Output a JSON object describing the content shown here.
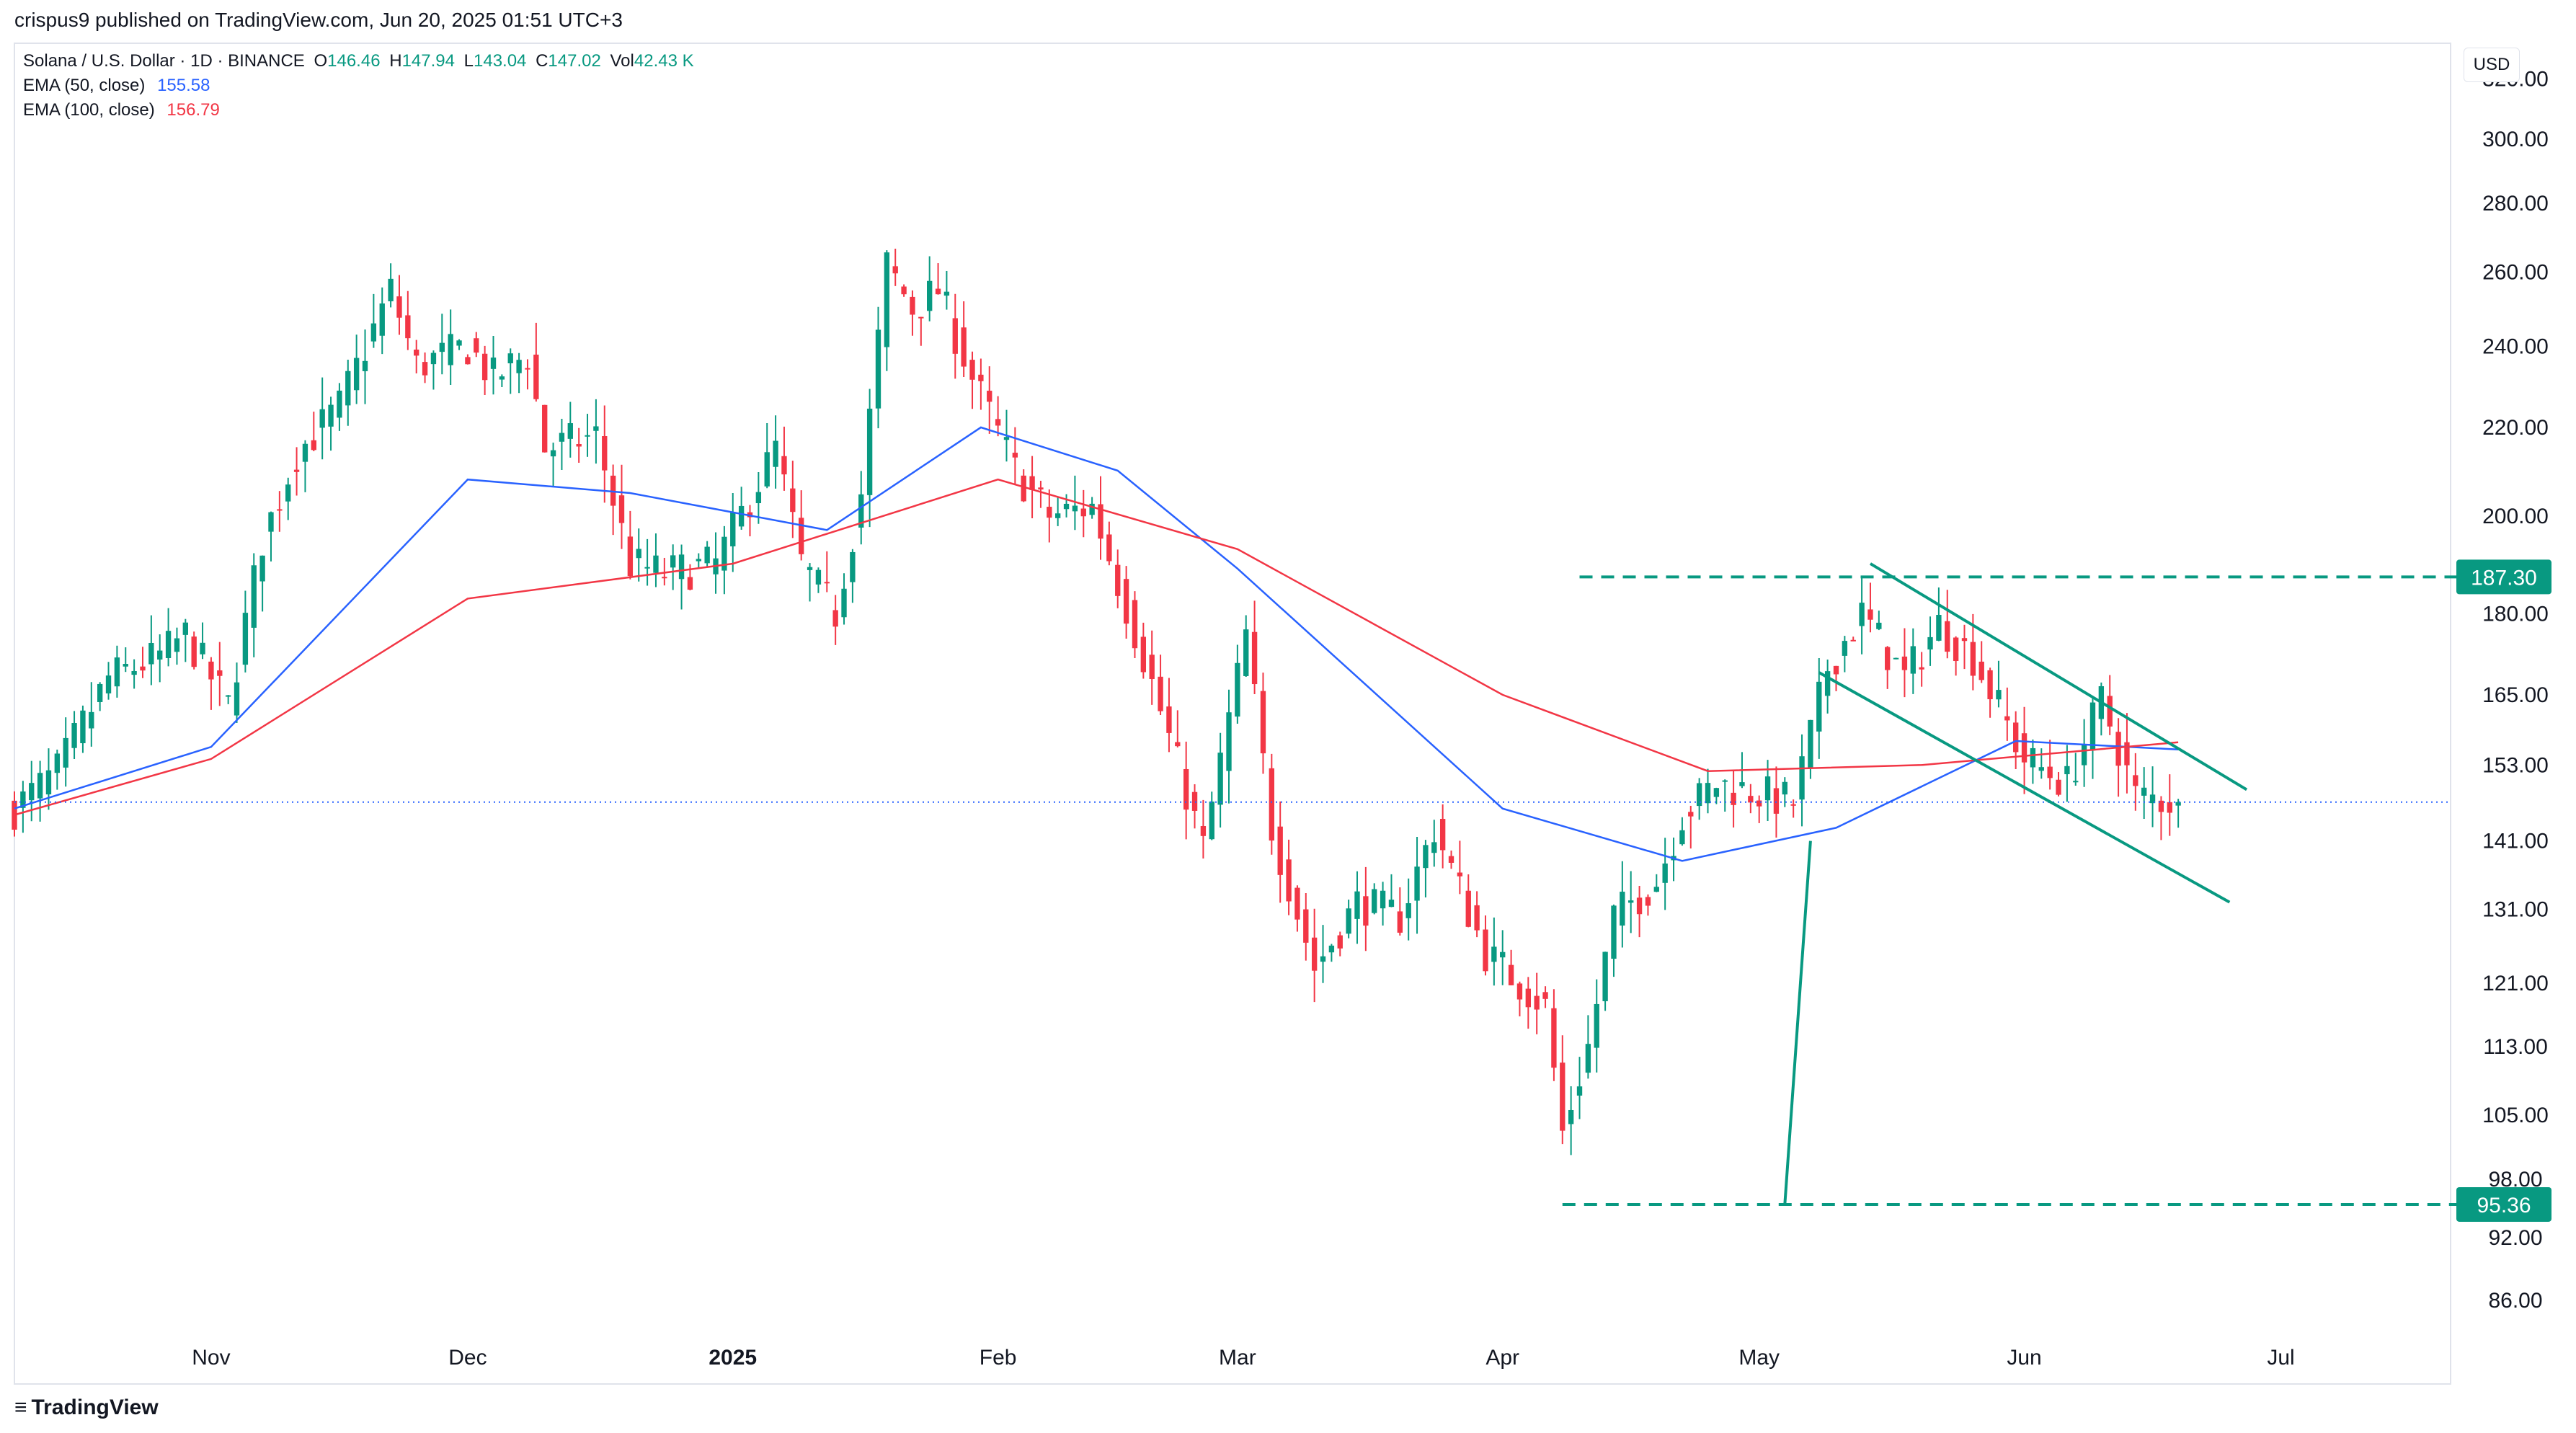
{
  "header": {
    "published": "crispus9 published on TradingView.com, Jun 20, 2025 01:51 UTC+3"
  },
  "legend": {
    "symbol": "Solana / U.S. Dollar · 1D · BINANCE",
    "o_label": "O",
    "o_value": "146.46",
    "h_label": "H",
    "h_value": "147.94",
    "l_label": "L",
    "l_value": "143.04",
    "c_label": "C",
    "c_value": "147.02",
    "vol_label": "Vol",
    "vol_value": "42.43 K",
    "ema50_label": "EMA (50, close)",
    "ema50_value": "155.58",
    "ema100_label": "EMA (100, close)",
    "ema100_value": "156.79"
  },
  "currency": "USD",
  "footer": {
    "brand": "TradingView"
  },
  "colors": {
    "up": "#089981",
    "down": "#f23645",
    "ema50": "#2962ff",
    "ema100": "#f23645",
    "drawing": "#089981",
    "last_price_line": "#2962ff",
    "axis_text": "#131722"
  },
  "chart_data": {
    "type": "candlestick",
    "title": "",
    "y_scale": "log",
    "ylim": [
      83,
      330
    ],
    "xlim": [
      "2024-10-09",
      "2025-07-20"
    ],
    "y_ticks": [
      "320.00",
      "300.00",
      "280.00",
      "260.00",
      "240.00",
      "220.00",
      "200.00",
      "180.00",
      "165.00",
      "153.00",
      "141.00",
      "131.00",
      "121.00",
      "113.00",
      "105.00",
      "98.00",
      "92.00",
      "86.00"
    ],
    "x_ticks": [
      {
        "date": "2024-11-01",
        "label": "Nov",
        "bold": false
      },
      {
        "date": "2024-12-01",
        "label": "Dec",
        "bold": false
      },
      {
        "date": "2025-01-01",
        "label": "2025",
        "bold": true
      },
      {
        "date": "2025-02-01",
        "label": "Feb",
        "bold": false
      },
      {
        "date": "2025-03-01",
        "label": "Mar",
        "bold": false
      },
      {
        "date": "2025-04-01",
        "label": "Apr",
        "bold": false
      },
      {
        "date": "2025-05-01",
        "label": "May",
        "bold": false
      },
      {
        "date": "2025-06-01",
        "label": "Jun",
        "bold": false
      },
      {
        "date": "2025-07-01",
        "label": "Jul",
        "bold": false
      }
    ],
    "price_labels": [
      {
        "value": 187.3,
        "label": "187.30"
      },
      {
        "value": 95.36,
        "label": "95.36"
      }
    ],
    "last_price": 147.02,
    "anchors": [
      {
        "date": "2024-10-09",
        "close": 146
      },
      {
        "date": "2024-10-14",
        "close": 152
      },
      {
        "date": "2024-10-20",
        "close": 168
      },
      {
        "date": "2024-10-26",
        "close": 172
      },
      {
        "date": "2024-10-29",
        "close": 176
      },
      {
        "date": "2024-11-03",
        "close": 163
      },
      {
        "date": "2024-11-07",
        "close": 195
      },
      {
        "date": "2024-11-11",
        "close": 214
      },
      {
        "date": "2024-11-16",
        "close": 225
      },
      {
        "date": "2024-11-22",
        "close": 255
      },
      {
        "date": "2024-11-25",
        "close": 235
      },
      {
        "date": "2024-12-01",
        "close": 240
      },
      {
        "date": "2024-12-04",
        "close": 232
      },
      {
        "date": "2024-12-08",
        "close": 238
      },
      {
        "date": "2024-12-10",
        "close": 215
      },
      {
        "date": "2024-12-16",
        "close": 218
      },
      {
        "date": "2024-12-20",
        "close": 190
      },
      {
        "date": "2024-12-24",
        "close": 188
      },
      {
        "date": "2024-12-30",
        "close": 190
      },
      {
        "date": "2025-01-06",
        "close": 215
      },
      {
        "date": "2025-01-09",
        "close": 190
      },
      {
        "date": "2025-01-13",
        "close": 180
      },
      {
        "date": "2025-01-16",
        "close": 205
      },
      {
        "date": "2025-01-19",
        "close": 262
      },
      {
        "date": "2025-01-22",
        "close": 250
      },
      {
        "date": "2025-01-25",
        "close": 255
      },
      {
        "date": "2025-01-29",
        "close": 232
      },
      {
        "date": "2025-02-03",
        "close": 210
      },
      {
        "date": "2025-02-07",
        "close": 200
      },
      {
        "date": "2025-02-12",
        "close": 202
      },
      {
        "date": "2025-02-18",
        "close": 172
      },
      {
        "date": "2025-02-25",
        "close": 140
      },
      {
        "date": "2025-03-02",
        "close": 176
      },
      {
        "date": "2025-03-05",
        "close": 143
      },
      {
        "date": "2025-03-10",
        "close": 123
      },
      {
        "date": "2025-03-15",
        "close": 132
      },
      {
        "date": "2025-03-20",
        "close": 130
      },
      {
        "date": "2025-03-24",
        "close": 143
      },
      {
        "date": "2025-03-30",
        "close": 125
      },
      {
        "date": "2025-04-06",
        "close": 118
      },
      {
        "date": "2025-04-08",
        "close": 103
      },
      {
        "date": "2025-04-11",
        "close": 113
      },
      {
        "date": "2025-04-14",
        "close": 130
      },
      {
        "date": "2025-04-19",
        "close": 135
      },
      {
        "date": "2025-04-22",
        "close": 145
      },
      {
        "date": "2025-04-26",
        "close": 150
      },
      {
        "date": "2025-05-05",
        "close": 147
      },
      {
        "date": "2025-05-09",
        "close": 170
      },
      {
        "date": "2025-05-13",
        "close": 180
      },
      {
        "date": "2025-05-18",
        "close": 168
      },
      {
        "date": "2025-05-22",
        "close": 178
      },
      {
        "date": "2025-05-26",
        "close": 172
      },
      {
        "date": "2025-06-01",
        "close": 154
      },
      {
        "date": "2025-06-06",
        "close": 150
      },
      {
        "date": "2025-06-10",
        "close": 164
      },
      {
        "date": "2025-06-14",
        "close": 148
      },
      {
        "date": "2025-06-19",
        "close": 147.02
      }
    ],
    "series": [
      {
        "name": "EMA (50, close)",
        "color": "#2962ff",
        "points": [
          {
            "date": "2024-10-09",
            "value": 146
          },
          {
            "date": "2024-11-01",
            "value": 156
          },
          {
            "date": "2024-12-01",
            "value": 208
          },
          {
            "date": "2024-12-20",
            "value": 205
          },
          {
            "date": "2025-01-12",
            "value": 197
          },
          {
            "date": "2025-01-30",
            "value": 220
          },
          {
            "date": "2025-02-15",
            "value": 210
          },
          {
            "date": "2025-03-01",
            "value": 189
          },
          {
            "date": "2025-04-01",
            "value": 146
          },
          {
            "date": "2025-04-22",
            "value": 138
          },
          {
            "date": "2025-05-10",
            "value": 143
          },
          {
            "date": "2025-05-31",
            "value": 157
          },
          {
            "date": "2025-06-19",
            "value": 155.58
          }
        ]
      },
      {
        "name": "EMA (100, close)",
        "color": "#f23645",
        "points": [
          {
            "date": "2024-10-09",
            "value": 145
          },
          {
            "date": "2024-11-01",
            "value": 154
          },
          {
            "date": "2024-12-01",
            "value": 183
          },
          {
            "date": "2025-01-01",
            "value": 190
          },
          {
            "date": "2025-02-01",
            "value": 208
          },
          {
            "date": "2025-03-01",
            "value": 193
          },
          {
            "date": "2025-04-01",
            "value": 165
          },
          {
            "date": "2025-04-25",
            "value": 152
          },
          {
            "date": "2025-05-20",
            "value": 153
          },
          {
            "date": "2025-06-19",
            "value": 156.79
          }
        ]
      }
    ],
    "annotations": [
      {
        "type": "hline-dashed",
        "value": 187.3,
        "from": "2025-04-10",
        "to": "2025-07-24"
      },
      {
        "type": "hline-dashed",
        "value": 95.36,
        "from": "2025-04-08",
        "to": "2025-07-24"
      },
      {
        "type": "trendline",
        "from": {
          "date": "2025-05-04",
          "value": 95.36
        },
        "to": {
          "date": "2025-05-07",
          "value": 141
        }
      },
      {
        "type": "trendline",
        "from": {
          "date": "2025-05-14",
          "value": 190
        },
        "to": {
          "date": "2025-06-27",
          "value": 149
        }
      },
      {
        "type": "trendline",
        "from": {
          "date": "2025-05-08",
          "value": 169
        },
        "to": {
          "date": "2025-06-25",
          "value": 132
        }
      }
    ]
  }
}
